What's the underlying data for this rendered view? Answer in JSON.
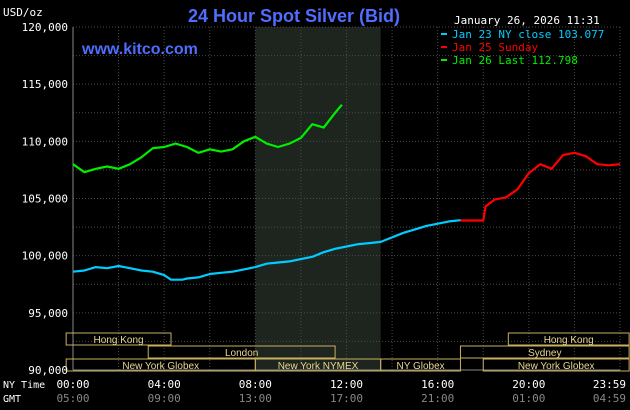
{
  "chart_data": {
    "type": "line",
    "title": "24 Hour Spot Silver (Bid)",
    "website": "www.kitco.com",
    "unit_label": "USD/oz",
    "timestamp": "January 26, 2026 11:31",
    "ylim": [
      90000,
      120000
    ],
    "y_ticks": [
      "120,000",
      "115,000",
      "110,000",
      "105,000",
      "100,000",
      "95,000",
      "90,000"
    ],
    "xlim": [
      0,
      24
    ],
    "row_labels": {
      "ny": "NY Time",
      "gmt": "GMT"
    },
    "x_ticks_ny": [
      "00:00",
      "04:00",
      "08:00",
      "12:00",
      "16:00",
      "20:00",
      "23:59"
    ],
    "x_ticks_gmt": [
      "05:00",
      "09:00",
      "13:00",
      "17:00",
      "21:00",
      "01:00",
      "04:59"
    ],
    "x_tick_hours": [
      0,
      4,
      8,
      12,
      16,
      20,
      24
    ],
    "grid": true,
    "shaded_period_hours": [
      8,
      13.5
    ],
    "legend": [
      {
        "label": "Jan 23 NY close 103.077",
        "color": "#00ccff"
      },
      {
        "label": "Jan 25 Sunday",
        "color": "#ff0000"
      },
      {
        "label": "Jan 26 Last 112.798",
        "color": "#00ee00"
      }
    ],
    "sessions": [
      {
        "name": "Hong Kong",
        "start": -0.3,
        "end": 4.3,
        "row": 0
      },
      {
        "name": "London",
        "start": 3.3,
        "end": 11.5,
        "row": 1
      },
      {
        "name": "New York Globex",
        "start": -0.3,
        "end": 8.0,
        "row": 2
      },
      {
        "name": "New York NYMEX",
        "start": 8.0,
        "end": 13.5,
        "row": 2
      },
      {
        "name": "NY Globex",
        "start": 13.5,
        "end": 17.0,
        "row": 2
      },
      {
        "name": "Hong Kong",
        "start": 19.1,
        "end": 24.4,
        "row": 0
      },
      {
        "name": "Sydney",
        "start": 17.0,
        "end": 24.4,
        "row": 1
      },
      {
        "name": "New York Globex",
        "start": 18.0,
        "end": 24.4,
        "row": 2
      }
    ],
    "series": [
      {
        "name": "Jan 23 NY close 103.077",
        "color": "#00ccff",
        "x": [
          0,
          0.5,
          1,
          1.5,
          2,
          2.5,
          3,
          3.5,
          4,
          4.3,
          4.8,
          5,
          5.5,
          6,
          6.5,
          7,
          7.5,
          8,
          8.5,
          9,
          9.5,
          10,
          10.5,
          11,
          11.5,
          12,
          12.5,
          13,
          13.5,
          14,
          14.5,
          15,
          15.5,
          16,
          16.5,
          17
        ],
        "y": [
          98600,
          98700,
          99000,
          98900,
          99100,
          98900,
          98700,
          98600,
          98300,
          97900,
          97900,
          98000,
          98100,
          98400,
          98500,
          98600,
          98800,
          99000,
          99300,
          99400,
          99500,
          99700,
          99900,
          100300,
          100600,
          100800,
          101000,
          101100,
          101200,
          101600,
          102000,
          102300,
          102600,
          102800,
          103000,
          103100
        ]
      },
      {
        "name": "Jan 25 Sunday",
        "color": "#ff0000",
        "x": [
          17,
          17.5,
          18,
          18.1,
          18.5,
          19,
          19.5,
          20,
          20.5,
          21,
          21.5,
          22,
          22.5,
          23,
          23.5,
          24
        ],
        "y": [
          103077,
          103077,
          103077,
          104300,
          104900,
          105100,
          105800,
          107200,
          108000,
          107600,
          108800,
          109000,
          108700,
          108000,
          107900,
          108000
        ]
      },
      {
        "name": "Jan 26 Last 112.798",
        "color": "#00ee00",
        "x": [
          0,
          0.5,
          1,
          1.5,
          2,
          2.5,
          3,
          3.5,
          4,
          4.5,
          5,
          5.5,
          6,
          6.5,
          7,
          7.5,
          8,
          8.5,
          9,
          9.5,
          10,
          10.5,
          11,
          11.5,
          11.8
        ],
        "y": [
          108000,
          107300,
          107600,
          107800,
          107600,
          108000,
          108600,
          109400,
          109500,
          109800,
          109500,
          109000,
          109300,
          109100,
          109300,
          110000,
          110400,
          109800,
          109500,
          109800,
          110300,
          111500,
          111200,
          112500,
          113200
        ]
      }
    ]
  }
}
